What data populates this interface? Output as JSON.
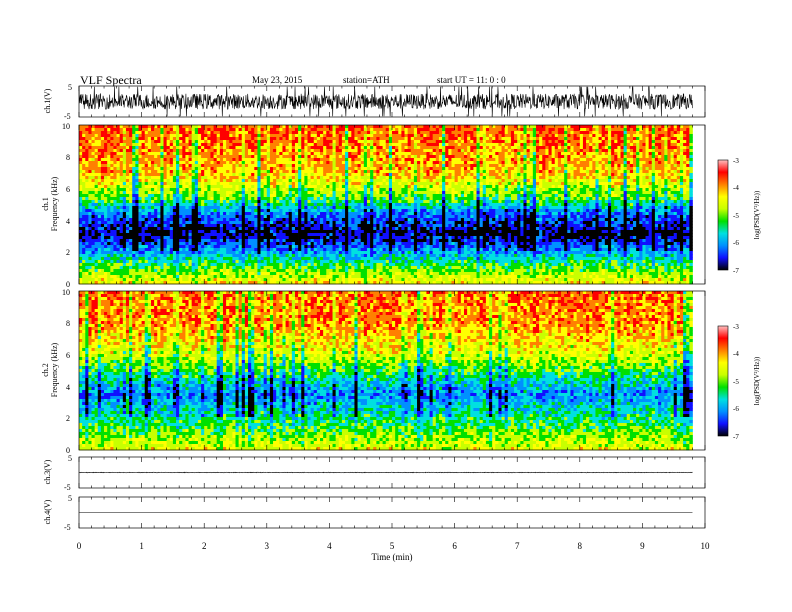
{
  "header": {
    "title": "VLF  Spectra",
    "date": "May 23, 2015",
    "station": "station=ATH",
    "start": "start  UT  =    11: 0   : 0"
  },
  "colorscale": [
    "#000000",
    "#1010ff",
    "#0090ff",
    "#00e0e0",
    "#00e000",
    "#c8ff00",
    "#ffff00",
    "#ff8000",
    "#ff0000",
    "#ffc0c0"
  ],
  "chart_data": [
    {
      "type": "line",
      "panel": "ch1-waveform",
      "ylabel": "ch.1(V)",
      "yticks": [
        "5",
        "-5"
      ],
      "ylim": [
        -5,
        5
      ],
      "xlim": [
        0,
        10
      ],
      "data_xlim": [
        0,
        9.8
      ],
      "baseline": 0,
      "envelope": 2.5
    },
    {
      "type": "heatmap",
      "panel": "ch1-spectrogram",
      "ylabel": "Frequency (kHz)",
      "channel_label": "ch.1",
      "yticks": [
        "0",
        "2",
        "4",
        "6",
        "8",
        "10"
      ],
      "ylim": [
        0,
        10
      ],
      "xlim": [
        0,
        10
      ],
      "data_xlim": [
        0,
        9.8
      ],
      "colorbar": {
        "label": "log(PSD(V²/Hz))",
        "ticks": [
          "-3",
          "-4",
          "-5",
          "-6",
          "-7"
        ],
        "range": [
          -7,
          -3
        ]
      },
      "profile": [
        {
          "f_khz": 0,
          "log_psd": -4.4
        },
        {
          "f_khz": 1.2,
          "log_psd": -5.2
        },
        {
          "f_khz": 2.4,
          "log_psd": -6.2
        },
        {
          "f_khz": 3.2,
          "log_psd": -6.7
        },
        {
          "f_khz": 4.5,
          "log_psd": -6.0
        },
        {
          "f_khz": 5.5,
          "log_psd": -5.0
        },
        {
          "f_khz": 7.0,
          "log_psd": -4.2
        },
        {
          "f_khz": 10,
          "log_psd": -3.8
        }
      ]
    },
    {
      "type": "heatmap",
      "panel": "ch2-spectrogram",
      "ylabel": "Frequency (kHz)",
      "channel_label": "ch.2",
      "yticks": [
        "0",
        "2",
        "4",
        "6",
        "8",
        "10"
      ],
      "ylim": [
        0,
        10
      ],
      "xlim": [
        0,
        10
      ],
      "data_xlim": [
        0,
        9.8
      ],
      "colorbar": {
        "label": "log(PSD(V²/Hz))",
        "ticks": [
          "-3",
          "-4",
          "-5",
          "-6",
          "-7"
        ],
        "range": [
          -7,
          -3
        ]
      },
      "profile": [
        {
          "f_khz": 0,
          "log_psd": -4.5
        },
        {
          "f_khz": 1.5,
          "log_psd": -5.2
        },
        {
          "f_khz": 2.8,
          "log_psd": -5.7
        },
        {
          "f_khz": 3.5,
          "log_psd": -6.0
        },
        {
          "f_khz": 4.8,
          "log_psd": -5.3
        },
        {
          "f_khz": 6.0,
          "log_psd": -4.6
        },
        {
          "f_khz": 8.0,
          "log_psd": -4.0
        },
        {
          "f_khz": 10,
          "log_psd": -3.9
        }
      ]
    },
    {
      "type": "line",
      "panel": "ch3-waveform",
      "ylabel": "ch.3(V)",
      "yticks": [
        "5",
        "-5"
      ],
      "ylim": [
        -5,
        5
      ],
      "xlim": [
        0,
        10
      ],
      "data_xlim": [
        0,
        9.8
      ],
      "baseline": 0,
      "envelope": 0.1
    },
    {
      "type": "line",
      "panel": "ch4-waveform",
      "ylabel": "ch.4(V)",
      "yticks": [
        "5",
        "-5"
      ],
      "ylim": [
        -5,
        5
      ],
      "xlim": [
        0,
        10
      ],
      "data_xlim": [
        0,
        9.8
      ],
      "baseline": 0,
      "envelope": 0
    }
  ],
  "x_axis": {
    "label": "Time  (min)",
    "ticks": [
      "0",
      "1",
      "2",
      "3",
      "4",
      "5",
      "6",
      "7",
      "8",
      "9",
      "10"
    ]
  }
}
